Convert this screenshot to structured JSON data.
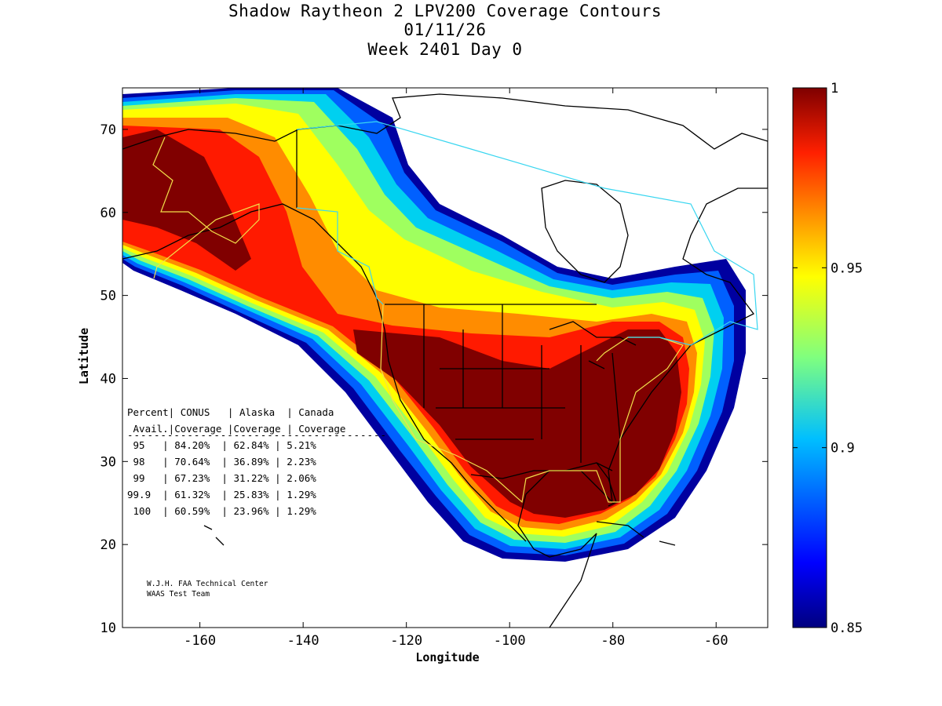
{
  "title": {
    "line1": "Shadow Raytheon 2 LPV200 Coverage Contours",
    "line2": "01/11/26",
    "line3": "Week 2401 Day 0"
  },
  "axes": {
    "xlabel": "Longitude",
    "ylabel": "Latitude",
    "xlim": [
      -175,
      -50
    ],
    "ylim": [
      10,
      75
    ],
    "xticks": [
      -160,
      -140,
      -120,
      -100,
      -80,
      -60
    ],
    "yticks": [
      10,
      20,
      30,
      40,
      50,
      60,
      70
    ]
  },
  "colorbar": {
    "min": 0.85,
    "max": 1,
    "ticks": [
      "1",
      "0.95",
      "0.9",
      "0.85"
    ],
    "tick_values": [
      1,
      0.95,
      0.9,
      0.85
    ],
    "colormap": "jet"
  },
  "table": {
    "header1": "Percent| CONUS   | Alaska  | Canada",
    "header2": " Avail.|Coverage |Coverage | Coverage",
    "divider": "---------------------------------------",
    "rows": [
      " 95   | 84.20%  | 62.84% | 5.21%",
      " 98   | 70.64%  | 36.89% | 2.23%",
      " 99   | 67.23%  | 31.22% | 2.06%",
      "99.9  | 61.32%  | 25.83% | 1.29%",
      " 100  | 60.59%  | 23.96% | 1.29%"
    ]
  },
  "credits": {
    "line1": "W.J.H. FAA Technical Center",
    "line2": "WAAS Test Team"
  },
  "colors": {
    "boundary_yellow": "#f2e04a",
    "boundary_cyan": "#39d6f0",
    "coastline": "#000000"
  }
}
